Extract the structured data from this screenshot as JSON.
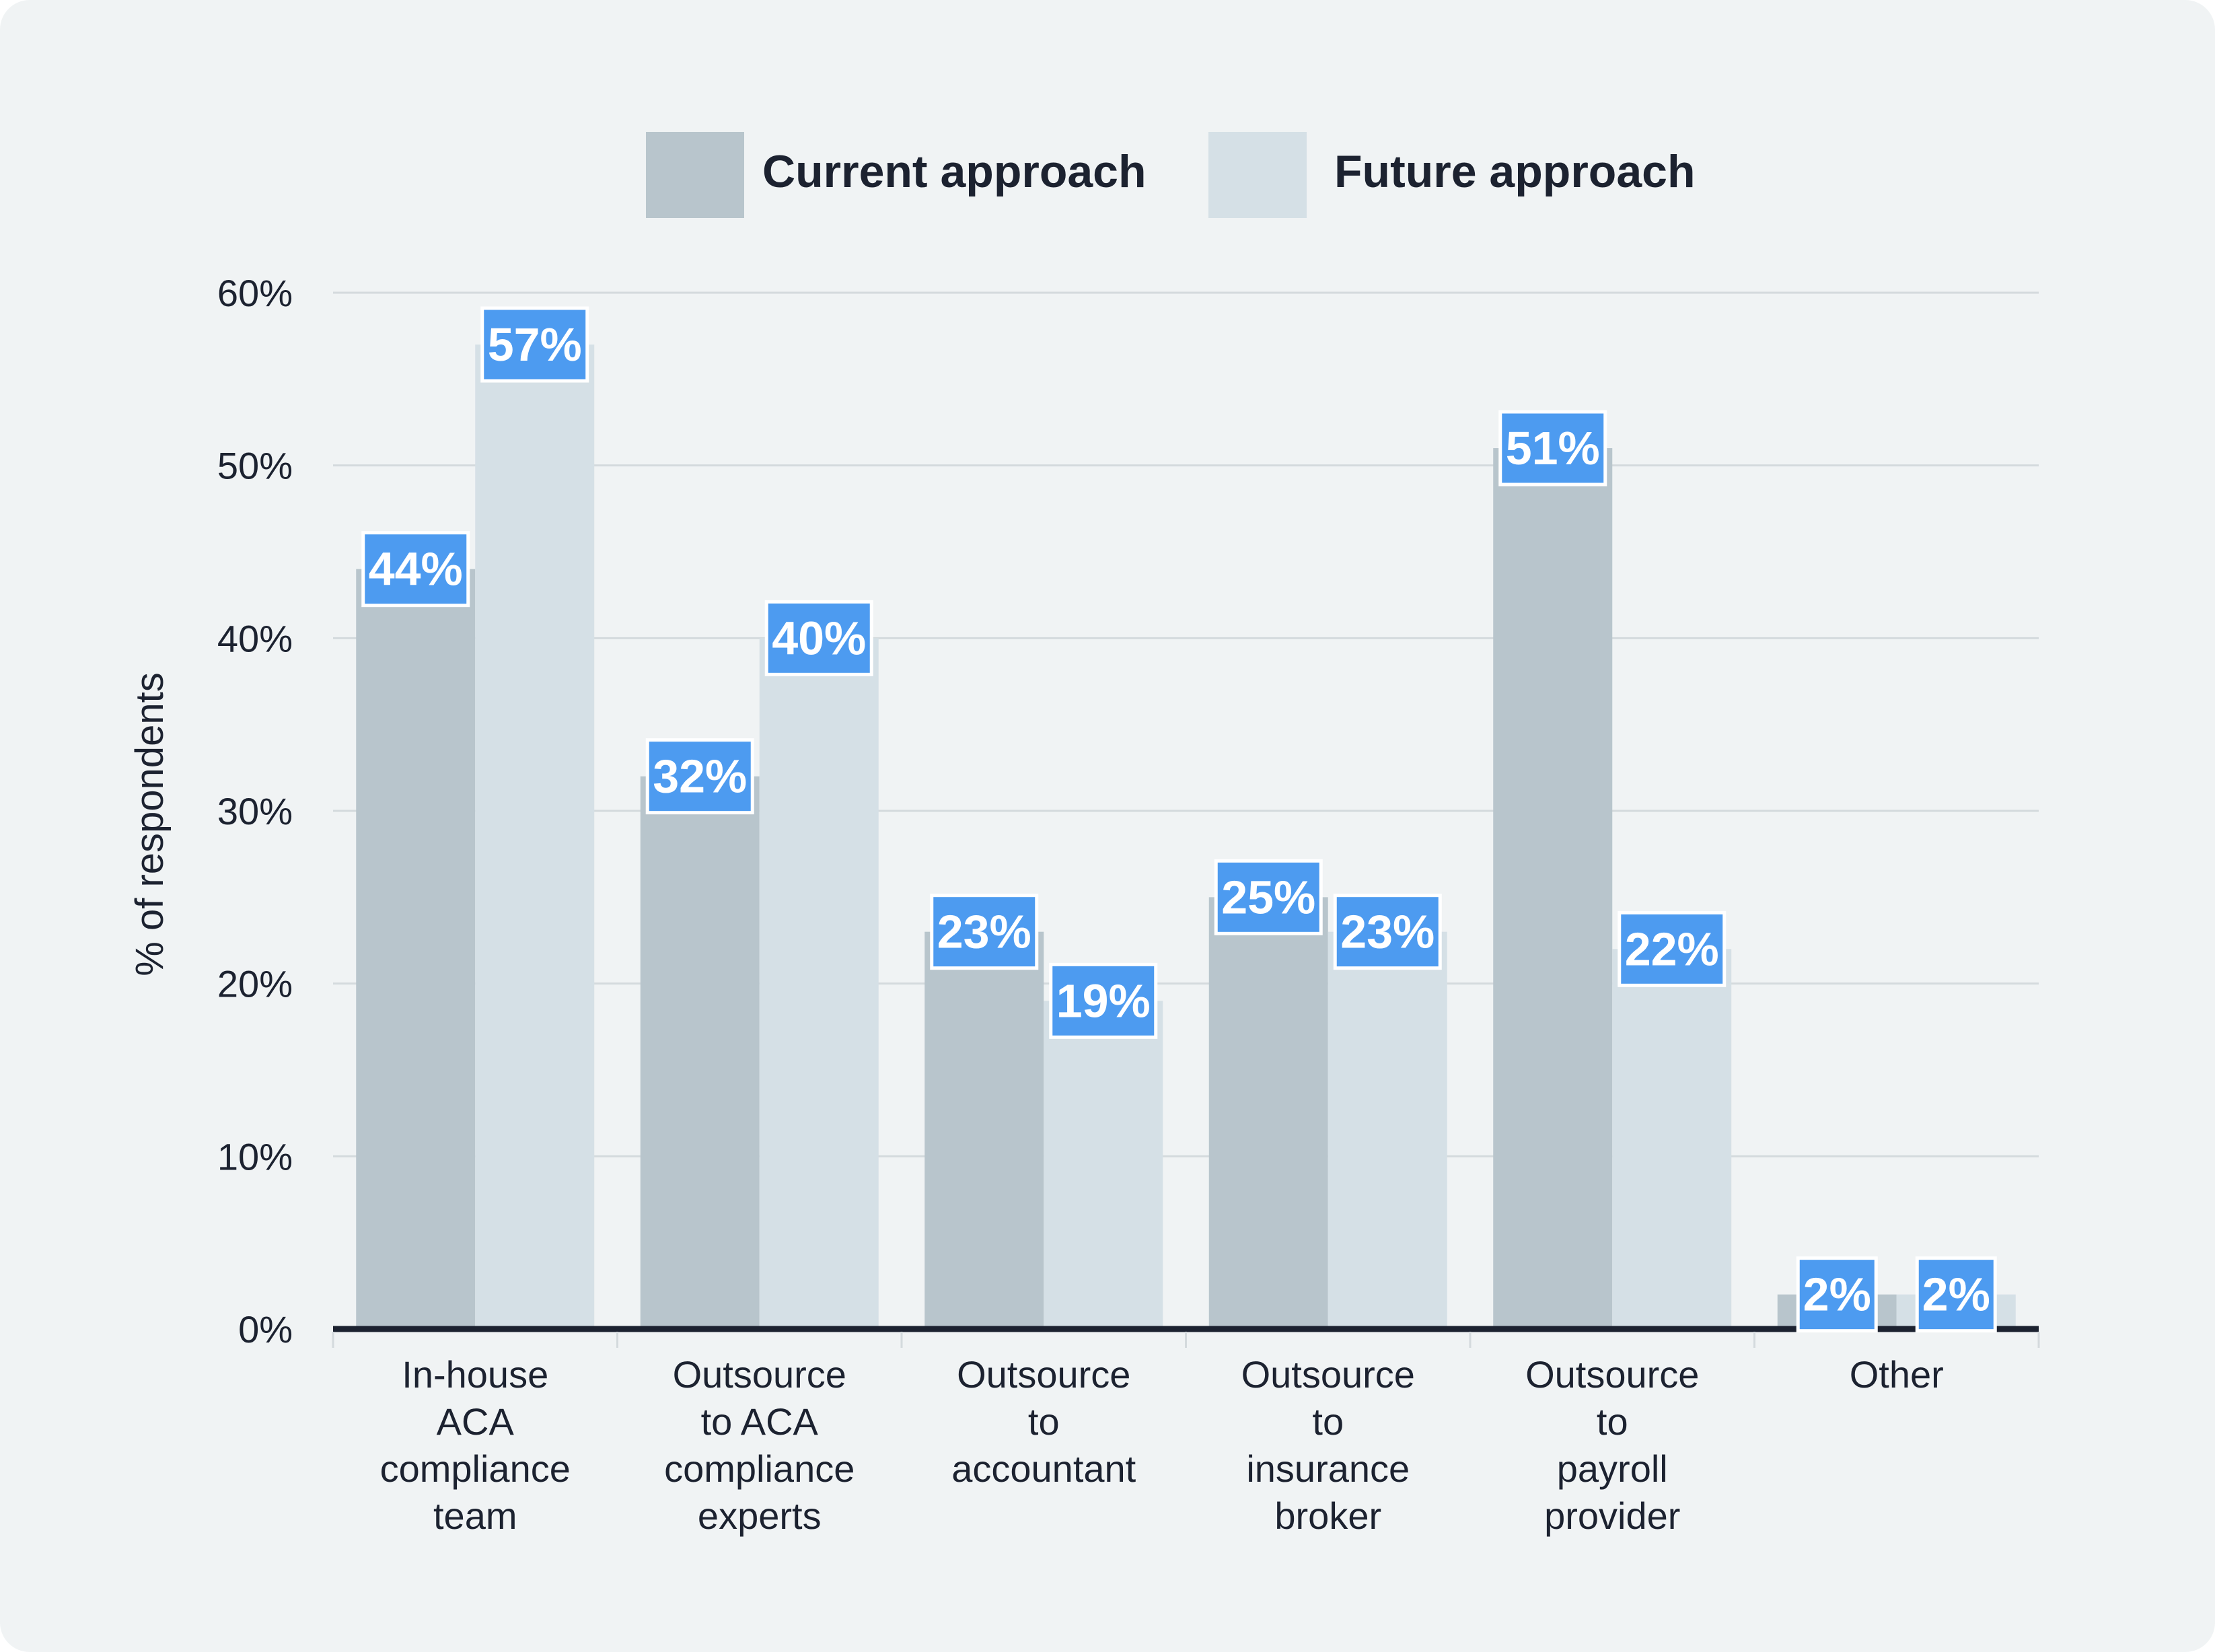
{
  "chart_data": {
    "type": "bar",
    "title": "",
    "xlabel": "",
    "ylabel": "% of respondents",
    "ylim": [
      0,
      60
    ],
    "yticks": [
      0,
      10,
      20,
      30,
      40,
      50,
      60
    ],
    "ytick_labels": [
      "0%",
      "10%",
      "20%",
      "30%",
      "40%",
      "50%",
      "60%"
    ],
    "grid": true,
    "legend_position": "top-center",
    "categories": [
      [
        "In-house",
        "ACA",
        "compliance",
        "team"
      ],
      [
        "Outsource",
        "to ACA",
        "compliance",
        "experts"
      ],
      [
        "Outsource",
        "to",
        "accountant"
      ],
      [
        "Outsource",
        "to",
        "insurance",
        "broker"
      ],
      [
        "Outsource",
        "to",
        "payroll",
        "provider"
      ],
      [
        "Other"
      ]
    ],
    "series": [
      {
        "name": "Current approach",
        "color": "#b8c5cc",
        "values": [
          44,
          32,
          23,
          25,
          51,
          2
        ],
        "labels": [
          "44%",
          "32%",
          "23%",
          "25%",
          "51%",
          "2%"
        ]
      },
      {
        "name": "Future approach",
        "color": "#d5e0e6",
        "values": [
          57,
          40,
          19,
          23,
          22,
          2
        ],
        "labels": [
          "57%",
          "40%",
          "19%",
          "23%",
          "22%",
          "2%"
        ]
      }
    ]
  },
  "colors": {
    "background": "#f0f3f4",
    "gridline": "#d4dadd",
    "baseline": "#1c2230",
    "label_bg": "#4d9bf0",
    "label_border": "#ffffff",
    "label_text": "#ffffff",
    "text": "#1c2230"
  }
}
